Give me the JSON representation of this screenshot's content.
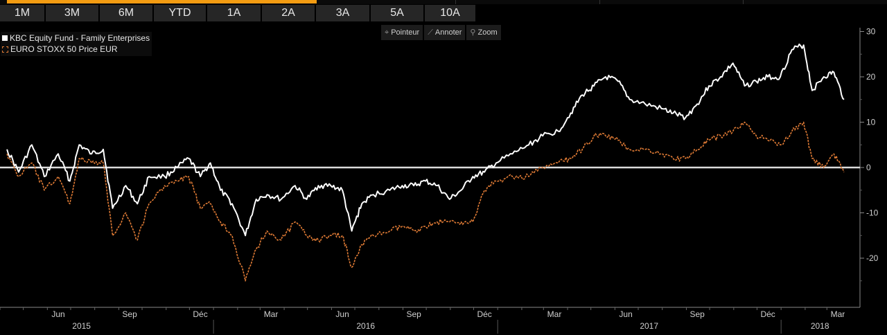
{
  "toolbar": {
    "ranges": [
      "1M",
      "3M",
      "6M",
      "YTD",
      "1A",
      "2A",
      "3A",
      "5A",
      "10A"
    ],
    "tools": [
      {
        "icon": "crosshair-icon",
        "glyph": "⌖",
        "label": "Pointeur"
      },
      {
        "icon": "pen-icon",
        "glyph": "⟋",
        "label": "Annoter"
      },
      {
        "icon": "magnifier-icon",
        "glyph": "⚲",
        "label": "Zoom"
      }
    ]
  },
  "colors": {
    "fund": "#ffffff",
    "index": "#e07b35",
    "zero_line": "#dcdcdc",
    "background": "#000000"
  },
  "chart_data": {
    "type": "line",
    "ylim": [
      -30,
      30
    ],
    "yticks": [
      30,
      20,
      10,
      0,
      -10,
      -20
    ],
    "legend_position": "top-left",
    "grid": false,
    "x_months": [
      "Jun",
      "Sep",
      "Déc",
      "Mar",
      "Jun",
      "Sep",
      "Déc",
      "Mar",
      "Jun",
      "Sep",
      "Déc",
      "Mar"
    ],
    "x_years": [
      "2015",
      "2016",
      "2017",
      "2018"
    ],
    "series": [
      {
        "name": "KBC Equity Fund - Family Enterprises",
        "style": "solid",
        "points": [
          [
            "2015-04-10",
            4
          ],
          [
            "2015-04-25",
            -1
          ],
          [
            "2015-05-12",
            5
          ],
          [
            "2015-05-28",
            -2
          ],
          [
            "2015-06-15",
            3
          ],
          [
            "2015-06-30",
            -3
          ],
          [
            "2015-07-12",
            5
          ],
          [
            "2015-07-28",
            3
          ],
          [
            "2015-08-12",
            4
          ],
          [
            "2015-08-24",
            -9
          ],
          [
            "2015-09-10",
            -4
          ],
          [
            "2015-09-25",
            -8
          ],
          [
            "2015-10-10",
            -2
          ],
          [
            "2015-10-30",
            -2
          ],
          [
            "2015-11-15",
            0
          ],
          [
            "2015-11-30",
            2
          ],
          [
            "2015-12-15",
            -2
          ],
          [
            "2015-12-28",
            1
          ],
          [
            "2016-01-10",
            -5
          ],
          [
            "2016-01-25",
            -8
          ],
          [
            "2016-02-11",
            -15
          ],
          [
            "2016-02-25",
            -7
          ],
          [
            "2016-03-10",
            -6
          ],
          [
            "2016-03-28",
            -7
          ],
          [
            "2016-04-15",
            -4
          ],
          [
            "2016-04-30",
            -7
          ],
          [
            "2016-05-15",
            -4
          ],
          [
            "2016-05-31",
            -4
          ],
          [
            "2016-06-15",
            -5
          ],
          [
            "2016-06-27",
            -14
          ],
          [
            "2016-07-10",
            -8
          ],
          [
            "2016-07-25",
            -6
          ],
          [
            "2016-08-15",
            -5
          ],
          [
            "2016-08-31",
            -4
          ],
          [
            "2016-09-15",
            -4
          ],
          [
            "2016-09-30",
            -3
          ],
          [
            "2016-10-15",
            -4
          ],
          [
            "2016-10-31",
            -7
          ],
          [
            "2016-11-15",
            -5
          ],
          [
            "2016-11-30",
            -2
          ],
          [
            "2016-12-15",
            -1
          ],
          [
            "2016-12-30",
            1
          ],
          [
            "2017-01-20",
            3
          ],
          [
            "2017-02-10",
            5
          ],
          [
            "2017-02-28",
            7
          ],
          [
            "2017-03-20",
            8
          ],
          [
            "2017-04-05",
            12
          ],
          [
            "2017-04-20",
            16
          ],
          [
            "2017-05-05",
            18
          ],
          [
            "2017-05-20",
            20
          ],
          [
            "2017-06-05",
            19
          ],
          [
            "2017-06-20",
            15
          ],
          [
            "2017-07-10",
            14
          ],
          [
            "2017-07-31",
            13
          ],
          [
            "2017-08-15",
            12
          ],
          [
            "2017-08-31",
            11
          ],
          [
            "2017-09-15",
            14
          ],
          [
            "2017-09-30",
            18
          ],
          [
            "2017-10-15",
            20
          ],
          [
            "2017-10-31",
            23
          ],
          [
            "2017-11-15",
            18
          ],
          [
            "2017-11-30",
            19
          ],
          [
            "2017-12-15",
            20
          ],
          [
            "2017-12-31",
            20
          ],
          [
            "2018-01-15",
            26
          ],
          [
            "2018-01-30",
            27
          ],
          [
            "2018-02-10",
            17
          ],
          [
            "2018-02-25",
            20
          ],
          [
            "2018-03-10",
            21
          ],
          [
            "2018-03-23",
            15
          ]
        ]
      },
      {
        "name": "EURO STOXX 50 Price EUR",
        "style": "dashed",
        "points": [
          [
            "2015-04-10",
            3
          ],
          [
            "2015-04-25",
            -2
          ],
          [
            "2015-05-12",
            1
          ],
          [
            "2015-05-28",
            -5
          ],
          [
            "2015-06-15",
            -2
          ],
          [
            "2015-06-30",
            -8
          ],
          [
            "2015-07-12",
            2
          ],
          [
            "2015-07-28",
            1
          ],
          [
            "2015-08-12",
            1
          ],
          [
            "2015-08-24",
            -15
          ],
          [
            "2015-09-10",
            -10
          ],
          [
            "2015-09-25",
            -16
          ],
          [
            "2015-10-10",
            -8
          ],
          [
            "2015-10-30",
            -4
          ],
          [
            "2015-11-15",
            -3
          ],
          [
            "2015-11-30",
            -2
          ],
          [
            "2015-12-15",
            -9
          ],
          [
            "2015-12-28",
            -8
          ],
          [
            "2016-01-10",
            -12
          ],
          [
            "2016-01-25",
            -15
          ],
          [
            "2016-02-11",
            -25
          ],
          [
            "2016-02-25",
            -18
          ],
          [
            "2016-03-10",
            -14
          ],
          [
            "2016-03-28",
            -16
          ],
          [
            "2016-04-15",
            -12
          ],
          [
            "2016-04-30",
            -15
          ],
          [
            "2016-05-15",
            -16
          ],
          [
            "2016-05-31",
            -15
          ],
          [
            "2016-06-15",
            -15
          ],
          [
            "2016-06-27",
            -22
          ],
          [
            "2016-07-10",
            -17
          ],
          [
            "2016-07-25",
            -15
          ],
          [
            "2016-08-15",
            -14
          ],
          [
            "2016-08-31",
            -13
          ],
          [
            "2016-09-15",
            -14
          ],
          [
            "2016-09-30",
            -13
          ],
          [
            "2016-10-15",
            -12
          ],
          [
            "2016-10-31",
            -12
          ],
          [
            "2016-11-15",
            -12
          ],
          [
            "2016-11-30",
            -12
          ],
          [
            "2016-12-15",
            -5
          ],
          [
            "2016-12-30",
            -3
          ],
          [
            "2017-01-20",
            -2
          ],
          [
            "2017-02-10",
            -2
          ],
          [
            "2017-02-28",
            0
          ],
          [
            "2017-03-20",
            1
          ],
          [
            "2017-04-05",
            2
          ],
          [
            "2017-04-20",
            4
          ],
          [
            "2017-05-05",
            7
          ],
          [
            "2017-05-20",
            7
          ],
          [
            "2017-06-05",
            6
          ],
          [
            "2017-06-20",
            4
          ],
          [
            "2017-07-10",
            4
          ],
          [
            "2017-07-31",
            3
          ],
          [
            "2017-08-15",
            2
          ],
          [
            "2017-08-31",
            2
          ],
          [
            "2017-09-15",
            4
          ],
          [
            "2017-09-30",
            6
          ],
          [
            "2017-10-15",
            7
          ],
          [
            "2017-10-31",
            8
          ],
          [
            "2017-11-15",
            10
          ],
          [
            "2017-11-30",
            7
          ],
          [
            "2017-12-15",
            6
          ],
          [
            "2017-12-31",
            5
          ],
          [
            "2018-01-15",
            8
          ],
          [
            "2018-01-30",
            10
          ],
          [
            "2018-02-10",
            2
          ],
          [
            "2018-02-25",
            0
          ],
          [
            "2018-03-10",
            3
          ],
          [
            "2018-03-23",
            -1
          ]
        ]
      }
    ]
  }
}
